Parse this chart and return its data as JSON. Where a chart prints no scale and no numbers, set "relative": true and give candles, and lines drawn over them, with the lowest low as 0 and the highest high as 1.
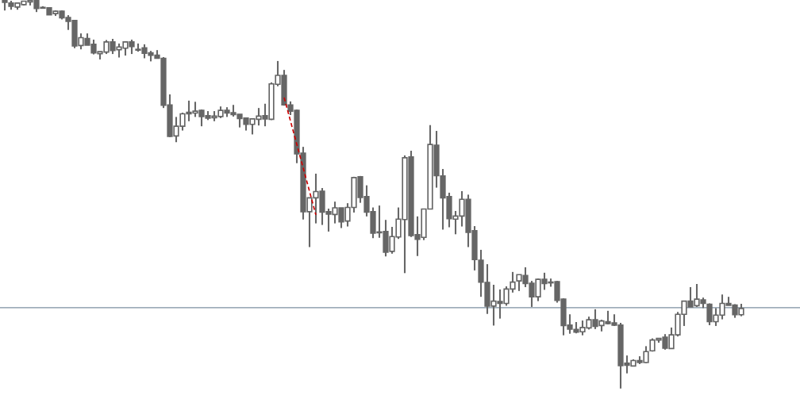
{
  "chart_data": {
    "type": "candlestick",
    "relative": true,
    "categories": [
      null,
      null,
      null,
      null,
      null,
      null,
      null,
      null,
      null,
      null,
      null,
      null,
      null,
      null,
      null,
      null,
      null,
      null,
      null,
      null,
      null,
      null,
      null,
      null,
      null,
      null,
      null,
      null,
      null,
      null,
      null,
      null,
      null,
      null,
      null,
      null,
      null,
      null,
      null,
      null,
      null,
      null,
      null,
      null,
      null,
      null,
      null,
      null,
      null,
      null,
      null,
      null,
      null,
      null,
      null,
      null,
      null,
      null,
      null,
      null,
      null,
      null,
      null,
      null,
      null,
      null,
      null,
      null,
      null,
      null,
      null,
      null,
      null,
      null,
      null,
      null,
      null,
      null,
      null,
      null,
      null,
      null,
      null,
      null,
      null,
      null,
      null,
      null,
      null,
      null,
      null,
      null,
      null,
      null,
      null,
      null,
      null,
      null,
      null,
      null,
      null,
      null,
      null,
      null,
      null,
      null,
      null,
      null,
      null,
      null,
      null,
      null,
      null,
      null,
      null,
      null,
      null
    ],
    "series": [
      {
        "color": "#666666",
        "ohlc": [
          [
            1.0,
            1.0,
            0.973,
            0.994
          ],
          [
            0.992,
            0.998,
            0.975,
            0.984
          ],
          [
            0.982,
            0.992,
            0.975,
            0.992
          ],
          [
            0.988,
            0.998,
            0.986,
            0.997
          ],
          [
            0.995,
            1.0,
            0.986,
            0.999
          ],
          [
            1.0,
            1.0,
            0.969,
            0.978
          ],
          [
            0.98,
            0.984,
            0.978,
            0.979
          ],
          [
            0.98,
            0.98,
            0.962,
            0.962
          ],
          [
            0.965,
            0.973,
            0.959,
            0.971
          ],
          [
            0.971,
            0.973,
            0.95,
            0.954
          ],
          [
            0.955,
            0.961,
            0.923,
            0.945
          ],
          [
            0.947,
            0.947,
            0.876,
            0.882
          ],
          [
            0.883,
            0.914,
            0.873,
            0.903
          ],
          [
            0.901,
            0.914,
            0.884,
            0.884
          ],
          [
            0.886,
            0.898,
            0.86,
            0.864
          ],
          [
            0.862,
            0.867,
            0.847,
            0.867
          ],
          [
            0.866,
            0.897,
            0.861,
            0.892
          ],
          [
            0.892,
            0.9,
            0.861,
            0.87
          ],
          [
            0.872,
            0.888,
            0.852,
            0.879
          ],
          [
            0.876,
            0.894,
            0.857,
            0.892
          ],
          [
            0.892,
            0.898,
            0.861,
            0.88
          ],
          [
            0.873,
            0.888,
            0.867,
            0.871
          ],
          [
            0.877,
            0.886,
            0.85,
            0.863
          ],
          [
            0.864,
            0.869,
            0.842,
            0.858
          ],
          [
            0.858,
            0.871,
            0.85,
            0.85
          ],
          [
            0.85,
            0.853,
            0.722,
            0.729
          ],
          [
            0.73,
            0.757,
            0.647,
            0.649
          ],
          [
            0.65,
            0.699,
            0.634,
            0.675
          ],
          [
            0.675,
            0.71,
            0.664,
            0.707
          ],
          [
            0.711,
            0.741,
            0.688,
            0.707
          ],
          [
            0.709,
            0.738,
            0.699,
            0.714
          ],
          [
            0.716,
            0.718,
            0.675,
            0.7
          ],
          [
            0.702,
            0.714,
            0.691,
            0.696
          ],
          [
            0.697,
            0.714,
            0.688,
            0.701
          ],
          [
            0.7,
            0.726,
            0.696,
            0.716
          ],
          [
            0.716,
            0.724,
            0.699,
            0.709
          ],
          [
            0.71,
            0.73,
            0.7,
            0.705
          ],
          [
            0.706,
            0.706,
            0.672,
            0.695
          ],
          [
            0.696,
            0.697,
            0.664,
            0.68
          ],
          [
            0.68,
            0.695,
            0.654,
            0.694
          ],
          [
            0.693,
            0.722,
            0.677,
            0.701
          ],
          [
            0.702,
            0.733,
            0.675,
            0.694
          ],
          [
            0.693,
            0.788,
            0.691,
            0.784
          ],
          [
            0.783,
            0.843,
            0.778,
            0.806
          ],
          [
            0.806,
            0.82,
            0.728,
            0.73
          ],
          [
            0.73,
            0.739,
            0.704,
            0.714
          ],
          [
            0.716,
            0.718,
            0.58,
            0.604
          ],
          [
            0.606,
            0.622,
            0.435,
            0.455
          ],
          [
            0.455,
            0.491,
            0.364,
            0.491
          ],
          [
            0.491,
            0.553,
            0.425,
            0.507
          ],
          [
            0.508,
            0.516,
            0.421,
            0.454
          ],
          [
            0.455,
            0.463,
            0.404,
            0.449
          ],
          [
            0.448,
            0.481,
            0.425,
            0.465
          ],
          [
            0.465,
            0.465,
            0.413,
            0.429
          ],
          [
            0.431,
            0.477,
            0.417,
            0.466
          ],
          [
            0.466,
            0.545,
            0.453,
            0.543
          ],
          [
            0.545,
            0.547,
            0.478,
            0.492
          ],
          [
            0.494,
            0.523,
            0.443,
            0.454
          ],
          [
            0.455,
            0.466,
            0.387,
            0.4
          ],
          [
            0.403,
            0.471,
            0.388,
            0.401
          ],
          [
            0.404,
            0.434,
            0.34,
            0.351
          ],
          [
            0.353,
            0.416,
            0.347,
            0.391
          ],
          [
            0.39,
            0.466,
            0.385,
            0.436
          ],
          [
            0.435,
            0.6,
            0.297,
            0.594
          ],
          [
            0.596,
            0.612,
            0.39,
            0.394
          ],
          [
            0.396,
            0.443,
            0.341,
            0.384
          ],
          [
            0.389,
            0.463,
            0.382,
            0.462
          ],
          [
            0.462,
            0.678,
            0.461,
            0.628
          ],
          [
            0.626,
            0.663,
            0.517,
            0.548
          ],
          [
            0.547,
            0.565,
            0.409,
            0.491
          ],
          [
            0.494,
            0.504,
            0.415,
            0.437
          ],
          [
            0.436,
            0.457,
            0.397,
            0.444
          ],
          [
            0.444,
            0.508,
            0.417,
            0.487
          ],
          [
            0.487,
            0.499,
            0.364,
            0.402
          ],
          [
            0.406,
            0.418,
            0.304,
            0.332
          ],
          [
            0.33,
            0.357,
            0.236,
            0.274
          ],
          [
            0.273,
            0.32,
            0.192,
            0.212
          ],
          [
            0.212,
            0.267,
            0.162,
            0.225
          ],
          [
            0.224,
            0.255,
            0.18,
            0.219
          ],
          [
            0.219,
            0.263,
            0.213,
            0.256
          ],
          [
            0.256,
            0.3,
            0.247,
            0.274
          ],
          [
            0.277,
            0.293,
            0.251,
            0.293
          ],
          [
            0.291,
            0.312,
            0.261,
            0.27
          ],
          [
            0.271,
            0.277,
            0.21,
            0.236
          ],
          [
            0.236,
            0.283,
            0.225,
            0.281
          ],
          [
            0.281,
            0.298,
            0.254,
            0.27
          ],
          [
            0.274,
            0.283,
            0.262,
            0.272
          ],
          [
            0.275,
            0.277,
            0.221,
            0.227
          ],
          [
            0.23,
            0.232,
            0.137,
            0.162
          ],
          [
            0.163,
            0.191,
            0.141,
            0.153
          ],
          [
            0.152,
            0.171,
            0.142,
            0.145
          ],
          [
            0.146,
            0.175,
            0.137,
            0.157
          ],
          [
            0.156,
            0.185,
            0.152,
            0.177
          ],
          [
            0.177,
            0.204,
            0.153,
            0.16
          ],
          [
            0.162,
            0.177,
            0.147,
            0.174
          ],
          [
            0.172,
            0.2,
            0.165,
            0.167
          ],
          [
            0.169,
            0.191,
            0.161,
            0.163
          ],
          [
            0.163,
            0.169,
            0.0,
            0.059
          ],
          [
            0.065,
            0.085,
            0.039,
            0.06
          ],
          [
            0.058,
            0.075,
            0.057,
            0.072
          ],
          [
            0.072,
            0.083,
            0.063,
            0.067
          ],
          [
            0.067,
            0.109,
            0.065,
            0.095
          ],
          [
            0.097,
            0.129,
            0.095,
            0.125
          ],
          [
            0.125,
            0.129,
            0.118,
            0.129
          ],
          [
            0.132,
            0.14,
            0.1,
            0.104
          ],
          [
            0.103,
            0.157,
            0.103,
            0.138
          ],
          [
            0.138,
            0.197,
            0.134,
            0.191
          ],
          [
            0.191,
            0.226,
            0.161,
            0.225
          ],
          [
            0.225,
            0.261,
            0.21,
            0.21
          ],
          [
            0.213,
            0.269,
            0.21,
            0.23
          ],
          [
            0.228,
            0.234,
            0.207,
            0.219
          ],
          [
            0.217,
            0.219,
            0.163,
            0.172
          ],
          [
            0.172,
            0.207,
            0.161,
            0.189
          ],
          [
            0.189,
            0.242,
            0.178,
            0.219
          ],
          [
            0.219,
            0.236,
            0.214,
            0.214
          ],
          [
            0.215,
            0.217,
            0.182,
            0.19
          ],
          [
            0.19,
            0.218,
            0.186,
            0.206
          ]
        ]
      },
      {
        "type": "line",
        "color": "#cc0000",
        "line_style": "dashed",
        "marker": "none",
        "values": [
          null,
          null,
          null,
          null,
          null,
          null,
          null,
          null,
          null,
          null,
          null,
          null,
          null,
          null,
          null,
          null,
          null,
          null,
          null,
          null,
          null,
          null,
          null,
          null,
          null,
          null,
          null,
          null,
          null,
          null,
          null,
          null,
          null,
          null,
          null,
          null,
          null,
          null,
          null,
          null,
          null,
          null,
          null,
          null,
          0.749,
          null,
          null,
          null,
          null,
          0.447,
          null,
          null,
          null,
          null,
          null,
          null,
          null,
          null,
          null,
          null,
          null,
          null,
          null,
          null,
          null,
          null,
          null,
          null,
          null,
          null,
          null,
          null,
          null,
          null,
          null,
          null,
          null,
          null,
          null,
          null,
          null,
          null,
          null,
          null,
          null,
          null,
          null,
          null,
          null,
          null,
          null,
          null,
          null,
          null,
          null,
          null,
          null,
          null,
          null,
          null,
          null,
          null,
          null,
          null,
          null,
          null,
          null,
          null,
          null,
          null,
          null,
          null,
          null,
          null,
          null,
          null,
          null
        ]
      }
    ],
    "ref_lines": [
      {
        "axis": "y",
        "value": 0.208,
        "color": "#7d8fa0"
      }
    ]
  }
}
